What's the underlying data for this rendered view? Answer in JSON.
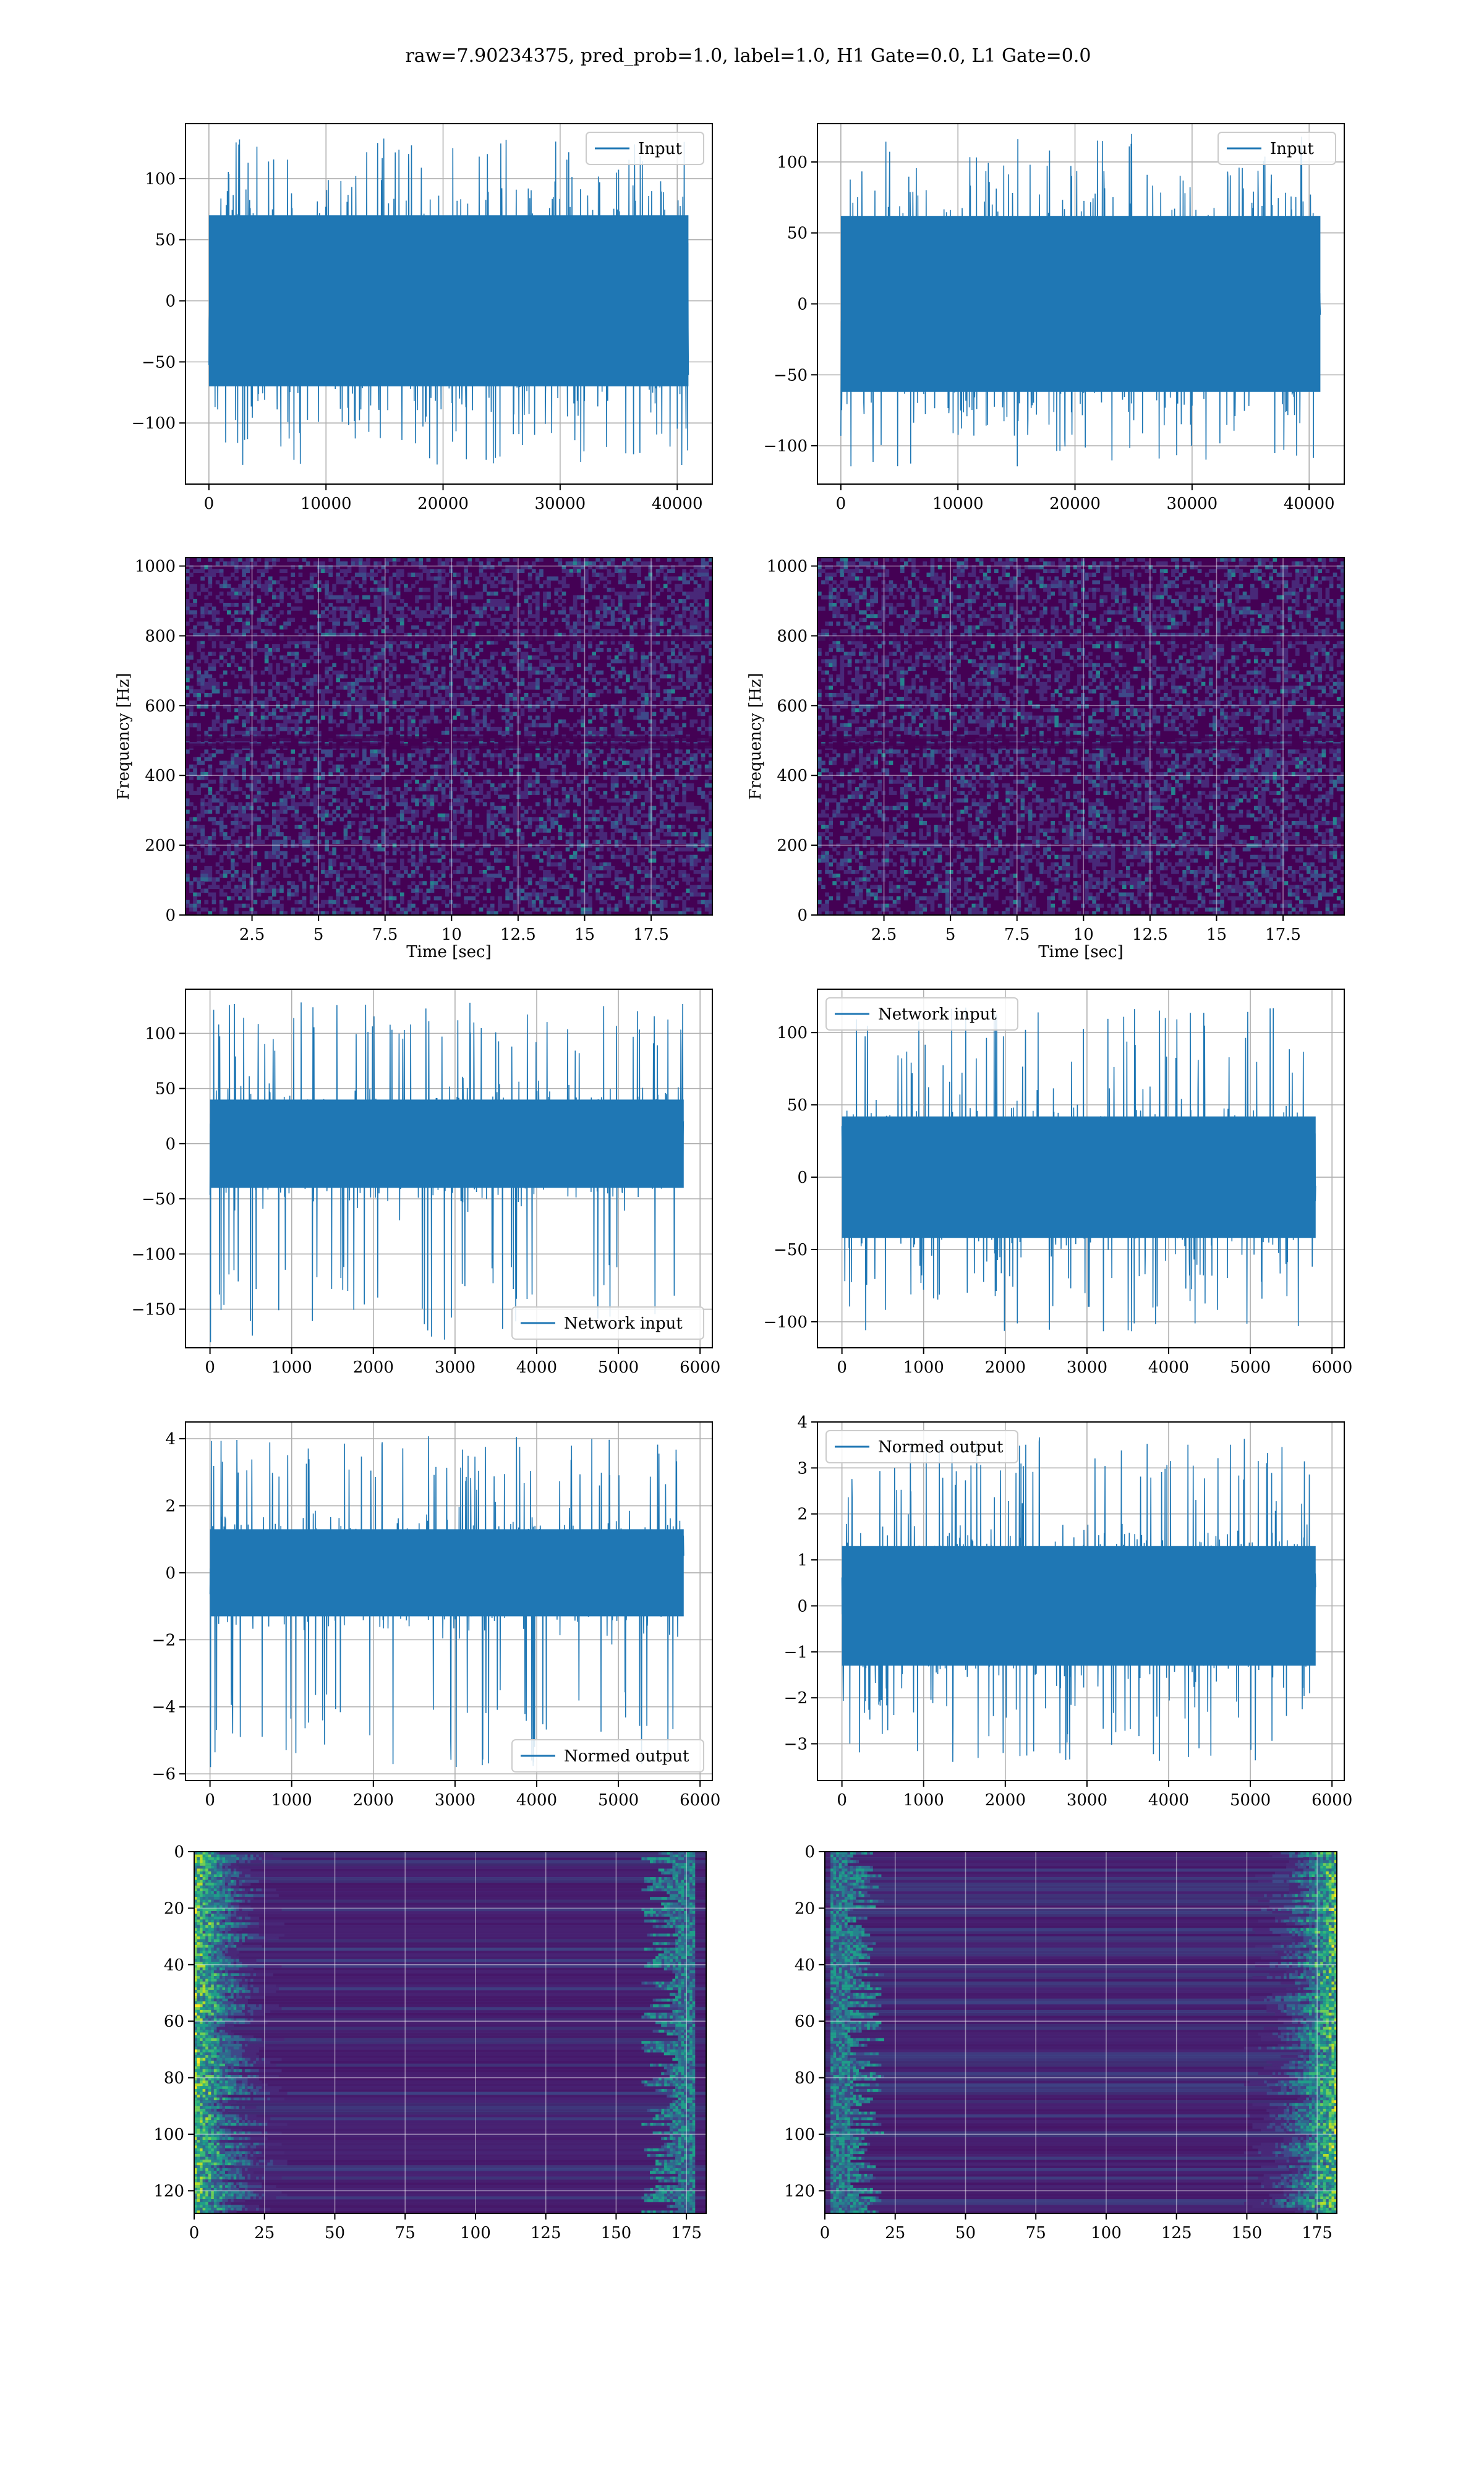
{
  "figure": {
    "title": "raw=7.90234375, pred_prob=1.0, label=1.0, H1 Gate=0.0, L1 Gate=0.0"
  },
  "colors": {
    "series": "#1f77b4",
    "viridis": [
      "#440154",
      "#482878",
      "#3e4989",
      "#31688e",
      "#26828e",
      "#1f9e89",
      "#35b779",
      "#6ece58",
      "#b5de2b",
      "#fde725"
    ]
  },
  "chart_data": [
    {
      "id": "r0c0",
      "type": "line",
      "legend": "Input",
      "legend_loc": "top-right",
      "xlim": [
        -2000,
        43000
      ],
      "ylim": [
        -150,
        145
      ],
      "xticks": [
        0,
        10000,
        20000,
        30000,
        40000
      ],
      "yticks": [
        -100,
        -50,
        0,
        50,
        100
      ],
      "xlabel": "",
      "ylabel": "",
      "series": [
        {
          "name": "Input",
          "x_range": [
            0,
            40960
          ],
          "n_points": 40960,
          "band": [
            -70,
            70
          ],
          "spike_range": [
            -135,
            135
          ]
        }
      ]
    },
    {
      "id": "r0c1",
      "type": "line",
      "legend": "Input",
      "legend_loc": "top-right",
      "xlim": [
        -2000,
        43000
      ],
      "ylim": [
        -127,
        127
      ],
      "xticks": [
        0,
        10000,
        20000,
        30000,
        40000
      ],
      "yticks": [
        -100,
        -50,
        0,
        50,
        100
      ],
      "xlabel": "",
      "ylabel": "",
      "series": [
        {
          "name": "Input",
          "x_range": [
            0,
            40960
          ],
          "n_points": 40960,
          "band": [
            -62,
            62
          ],
          "spike_range": [
            -115,
            120
          ]
        }
      ]
    },
    {
      "id": "r1c0",
      "type": "heatmap",
      "xlim": [
        0,
        19.8
      ],
      "ylim": [
        0,
        1024
      ],
      "xticks": [
        2.5,
        5.0,
        7.5,
        10.0,
        12.5,
        15.0,
        17.5
      ],
      "yticks": [
        0,
        200,
        400,
        600,
        800,
        1000
      ],
      "xlabel": "Time [sec]",
      "ylabel": "Frequency [Hz]",
      "yinverted": false
    },
    {
      "id": "r1c1",
      "type": "heatmap",
      "xlim": [
        0,
        19.8
      ],
      "ylim": [
        0,
        1024
      ],
      "xticks": [
        2.5,
        5.0,
        7.5,
        10.0,
        12.5,
        15.0,
        17.5
      ],
      "yticks": [
        0,
        200,
        400,
        600,
        800,
        1000
      ],
      "xlabel": "Time [sec]",
      "ylabel": "Frequency [Hz]",
      "yinverted": false
    },
    {
      "id": "r2c0",
      "type": "line",
      "legend": "Network input",
      "legend_loc": "bottom-right",
      "xlim": [
        -300,
        6150
      ],
      "ylim": [
        -185,
        140
      ],
      "xticks": [
        0,
        1000,
        2000,
        3000,
        4000,
        5000,
        6000
      ],
      "yticks": [
        -150,
        -100,
        -50,
        0,
        50,
        100
      ],
      "xlabel": "",
      "ylabel": "",
      "series": [
        {
          "name": "Network input",
          "x_range": [
            0,
            5800
          ],
          "n_points": 5800,
          "band": [
            -40,
            40
          ],
          "spike_range": [
            -180,
            130
          ]
        }
      ]
    },
    {
      "id": "r2c1",
      "type": "line",
      "legend": "Network input",
      "legend_loc": "top-left",
      "xlim": [
        -300,
        6150
      ],
      "ylim": [
        -118,
        130
      ],
      "xticks": [
        0,
        1000,
        2000,
        3000,
        4000,
        5000,
        6000
      ],
      "yticks": [
        -100,
        -50,
        0,
        50,
        100
      ],
      "xlabel": "",
      "ylabel": "",
      "series": [
        {
          "name": "Network input",
          "x_range": [
            0,
            5800
          ],
          "n_points": 5800,
          "band": [
            -42,
            42
          ],
          "spike_range": [
            -110,
            118
          ]
        }
      ]
    },
    {
      "id": "r3c0",
      "type": "line",
      "legend": "Normed output",
      "legend_loc": "bottom-right",
      "xlim": [
        -300,
        6150
      ],
      "ylim": [
        -6.2,
        4.5
      ],
      "xticks": [
        0,
        1000,
        2000,
        3000,
        4000,
        5000,
        6000
      ],
      "yticks": [
        -6,
        -4,
        -2,
        0,
        2,
        4
      ],
      "xlabel": "",
      "ylabel": "",
      "series": [
        {
          "name": "Normed output",
          "x_range": [
            0,
            5800
          ],
          "n_points": 5800,
          "band": [
            -1.3,
            1.3
          ],
          "spike_range": [
            -5.8,
            4.1
          ]
        }
      ]
    },
    {
      "id": "r3c1",
      "type": "line",
      "legend": "Normed output",
      "legend_loc": "top-left",
      "xlim": [
        -300,
        6150
      ],
      "ylim": [
        -3.8,
        4.0
      ],
      "xticks": [
        0,
        1000,
        2000,
        3000,
        4000,
        5000,
        6000
      ],
      "yticks": [
        -3,
        -2,
        -1,
        0,
        1,
        2,
        3,
        4
      ],
      "xlabel": "",
      "ylabel": "",
      "series": [
        {
          "name": "Normed output",
          "x_range": [
            0,
            5800
          ],
          "n_points": 5800,
          "band": [
            -1.3,
            1.3
          ],
          "spike_range": [
            -3.4,
            3.7
          ]
        }
      ]
    },
    {
      "id": "r4c0",
      "type": "heatmap",
      "xlim": [
        0,
        182
      ],
      "ylim": [
        0,
        128
      ],
      "xticks": [
        0,
        25,
        50,
        75,
        100,
        125,
        150,
        175
      ],
      "yticks": [
        0,
        20,
        40,
        60,
        80,
        100,
        120
      ],
      "xlabel": "",
      "ylabel": "",
      "yinverted": true,
      "bright_edge": "left"
    },
    {
      "id": "r4c1",
      "type": "heatmap",
      "xlim": [
        0,
        182
      ],
      "ylim": [
        0,
        128
      ],
      "xticks": [
        0,
        25,
        50,
        75,
        100,
        125,
        150,
        175
      ],
      "yticks": [
        0,
        20,
        40,
        60,
        80,
        100,
        120
      ],
      "xlabel": "",
      "ylabel": "",
      "yinverted": true,
      "bright_edge": "right"
    }
  ]
}
